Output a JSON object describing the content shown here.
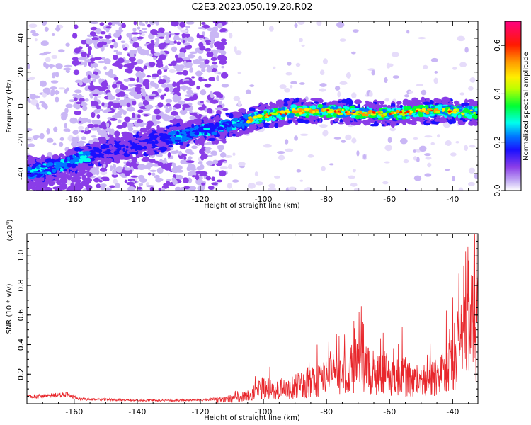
{
  "title": "C2E3.2023.050.19.28.R02",
  "chart_data": [
    {
      "type": "heatmap",
      "xlabel": "Height of straight line (km)",
      "ylabel": "Frequency (Hz)",
      "xlim": [
        -175,
        -32
      ],
      "ylim": [
        -50,
        50
      ],
      "xticks": [
        -160,
        -140,
        -120,
        -100,
        -80,
        -60,
        -40
      ],
      "yticks": [
        -40,
        -20,
        0,
        20,
        40
      ],
      "colorbar": {
        "label": "Normalized spectral amplitude",
        "range": [
          0.0,
          0.7
        ],
        "ticks": [
          0.0,
          0.2,
          0.4,
          0.6
        ],
        "colormap": [
          "#ffffff",
          "#b69cf0",
          "#7a2ee6",
          "#0000ff",
          "#00ffff",
          "#00ff00",
          "#ffff00",
          "#ff8800",
          "#ff0000",
          "#ff0077"
        ]
      },
      "ridge": [
        {
          "x": -175,
          "y": -40
        },
        {
          "x": -165,
          "y": -36
        },
        {
          "x": -158,
          "y": -31
        },
        {
          "x": -150,
          "y": -27
        },
        {
          "x": -140,
          "y": -23
        },
        {
          "x": -130,
          "y": -19
        },
        {
          "x": -120,
          "y": -15
        },
        {
          "x": -110,
          "y": -11
        },
        {
          "x": -100,
          "y": -6
        },
        {
          "x": -90,
          "y": -3
        },
        {
          "x": -80,
          "y": -3
        },
        {
          "x": -70,
          "y": -4
        },
        {
          "x": -60,
          "y": -5
        },
        {
          "x": -50,
          "y": -3
        },
        {
          "x": -40,
          "y": -3
        },
        {
          "x": -32,
          "y": -4
        }
      ]
    },
    {
      "type": "line",
      "xlabel": "Height of straight line (km)",
      "ylabel": "SNR (10 * v/v)",
      "yscale_label": "(x10",
      "yscale_exp": "4",
      "yscale_close": ")",
      "xlim": [
        -175,
        -32
      ],
      "ylim": [
        0,
        1.15
      ],
      "xticks": [
        -160,
        -140,
        -120,
        -100,
        -80,
        -60,
        -40
      ],
      "yticks": [
        0.2,
        0.4,
        0.6,
        0.8,
        1.0
      ],
      "line_color": "#e8262b",
      "envelope": [
        {
          "x": -175,
          "y": 0.06
        },
        {
          "x": -168,
          "y": 0.07
        },
        {
          "x": -162,
          "y": 0.08
        },
        {
          "x": -158,
          "y": 0.04
        },
        {
          "x": -140,
          "y": 0.03
        },
        {
          "x": -120,
          "y": 0.03
        },
        {
          "x": -112,
          "y": 0.05
        },
        {
          "x": -105,
          "y": 0.1
        },
        {
          "x": -100,
          "y": 0.18
        },
        {
          "x": -95,
          "y": 0.16
        },
        {
          "x": -90,
          "y": 0.2
        },
        {
          "x": -85,
          "y": 0.26
        },
        {
          "x": -80,
          "y": 0.32
        },
        {
          "x": -75,
          "y": 0.35
        },
        {
          "x": -70,
          "y": 0.45
        },
        {
          "x": -65,
          "y": 0.4
        },
        {
          "x": -60,
          "y": 0.34
        },
        {
          "x": -55,
          "y": 0.3
        },
        {
          "x": -50,
          "y": 0.26
        },
        {
          "x": -45,
          "y": 0.32
        },
        {
          "x": -40,
          "y": 0.55
        },
        {
          "x": -36,
          "y": 0.75
        },
        {
          "x": -32,
          "y": 1.0
        }
      ],
      "peaks": [
        {
          "x": -69,
          "y": 0.66
        },
        {
          "x": -62,
          "y": 0.48
        },
        {
          "x": -56,
          "y": 0.52
        },
        {
          "x": -98,
          "y": 0.25
        },
        {
          "x": -83,
          "y": 0.4
        },
        {
          "x": -76,
          "y": 0.46
        },
        {
          "x": -42,
          "y": 0.63
        },
        {
          "x": -38,
          "y": 0.88
        },
        {
          "x": -35,
          "y": 0.97
        },
        {
          "x": -33,
          "y": 1.15
        }
      ]
    }
  ]
}
